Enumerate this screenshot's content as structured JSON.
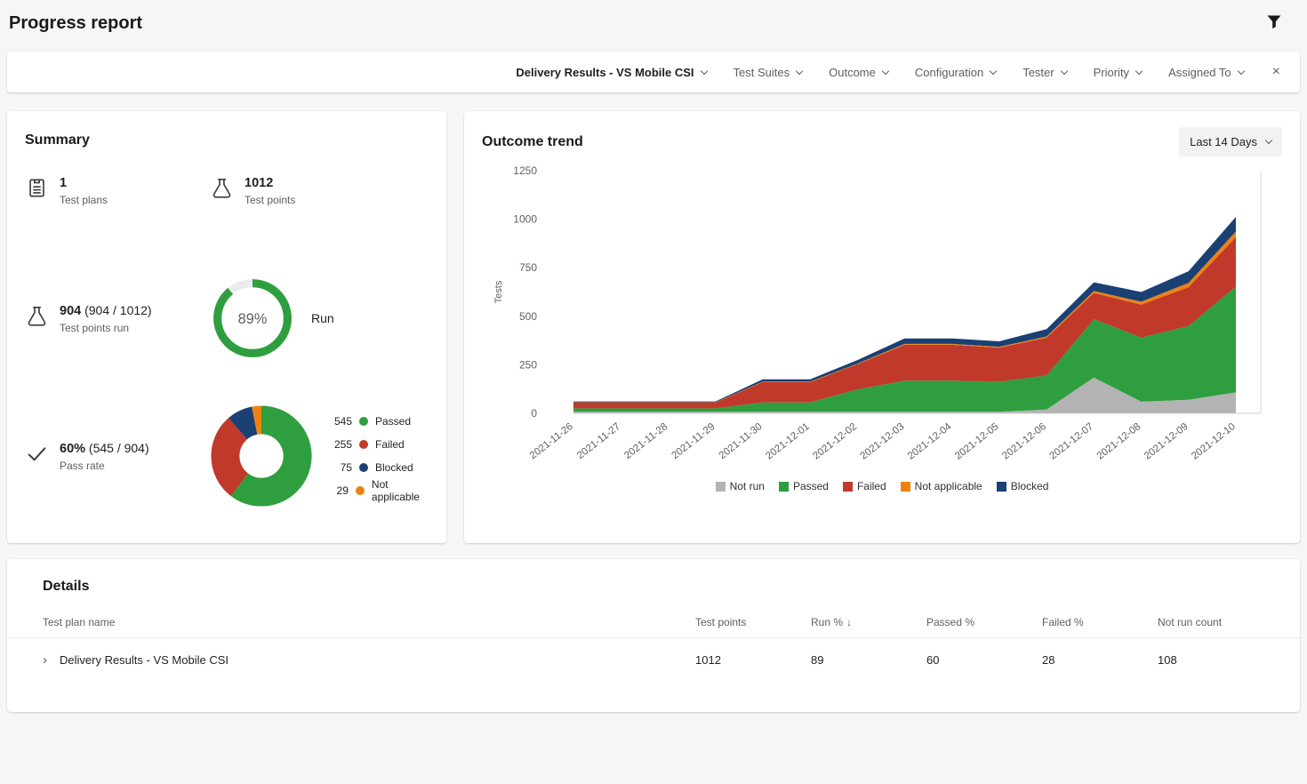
{
  "icons": {
    "close": "×",
    "expand_right": "›",
    "sort_desc": "↓"
  },
  "page": {
    "title": "Progress report"
  },
  "filter_bar": {
    "primary": "Delivery Results - VS Mobile CSI",
    "filters": [
      "Test Suites",
      "Outcome",
      "Configuration",
      "Tester",
      "Priority",
      "Assigned To"
    ]
  },
  "summary": {
    "title": "Summary",
    "stats": [
      {
        "value": "1",
        "detail": "",
        "label": "Test plans"
      },
      {
        "value": "1012",
        "detail": "",
        "label": "Test points"
      },
      {
        "value": "904",
        "detail": "(904 / 1012)",
        "label": "Test points run"
      },
      {
        "value": "60%",
        "detail": "(545 / 904)",
        "label": "Pass rate"
      }
    ],
    "run_label": "Run"
  },
  "trend": {
    "title": "Outcome trend",
    "range_label": "Last 14 Days"
  },
  "details": {
    "title": "Details",
    "columns": [
      "Test plan name",
      "Test points",
      "Run %",
      "Passed %",
      "Failed %",
      "Not run count"
    ],
    "rows": [
      {
        "name": "Delivery Results - VS Mobile CSI",
        "test_points": "1012",
        "run_pct": "89",
        "passed_pct": "60",
        "failed_pct": "28",
        "not_run": "108"
      }
    ]
  },
  "chart_data": [
    {
      "id": "run_gauge",
      "type": "donut",
      "title": "Run percentage",
      "percent": 89,
      "display": "89%",
      "color": "#2E9E3E",
      "track_color": "#ececec"
    },
    {
      "id": "outcome_donut",
      "type": "pie",
      "title": "Outcome distribution",
      "segments": [
        {
          "label": "Passed",
          "value": 545,
          "color": "#2E9E3E"
        },
        {
          "label": "Failed",
          "value": 255,
          "color": "#C0392B"
        },
        {
          "label": "Blocked",
          "value": 75,
          "color": "#1B4073"
        },
        {
          "label": "Not applicable",
          "value": 29,
          "color": "#EE8211"
        }
      ]
    },
    {
      "id": "outcome_trend",
      "type": "area",
      "stacked": true,
      "title": "Outcome trend",
      "xlabel": "",
      "ylabel": "Tests",
      "ylim": [
        0,
        1250
      ],
      "yticks": [
        0,
        250,
        500,
        750,
        1000,
        1250
      ],
      "legend_position": "bottom",
      "categories": [
        "2021-11-26",
        "2021-11-27",
        "2021-11-28",
        "2021-11-29",
        "2021-11-30",
        "2021-12-01",
        "2021-12-02",
        "2021-12-03",
        "2021-12-04",
        "2021-12-05",
        "2021-12-06",
        "2021-12-07",
        "2021-12-08",
        "2021-12-09",
        "2021-12-10"
      ],
      "series": [
        {
          "name": "Not run",
          "color": "#B3B3B3",
          "values": [
            8,
            8,
            8,
            8,
            8,
            8,
            8,
            8,
            8,
            8,
            20,
            185,
            60,
            70,
            108
          ]
        },
        {
          "name": "Passed",
          "color": "#2E9E3E",
          "values": [
            18,
            18,
            18,
            18,
            48,
            48,
            115,
            160,
            160,
            155,
            175,
            300,
            330,
            380,
            545
          ]
        },
        {
          "name": "Failed",
          "color": "#C0392B",
          "values": [
            30,
            30,
            30,
            30,
            105,
            105,
            130,
            185,
            185,
            175,
            195,
            135,
            170,
            200,
            255
          ]
        },
        {
          "name": "Not applicable",
          "color": "#EE8211",
          "values": [
            1,
            1,
            1,
            1,
            2,
            2,
            3,
            5,
            5,
            5,
            6,
            10,
            15,
            22,
            29
          ]
        },
        {
          "name": "Blocked",
          "color": "#1B4073",
          "values": [
            4,
            4,
            4,
            4,
            12,
            12,
            18,
            28,
            28,
            28,
            38,
            45,
            50,
            60,
            75
          ]
        }
      ]
    }
  ]
}
